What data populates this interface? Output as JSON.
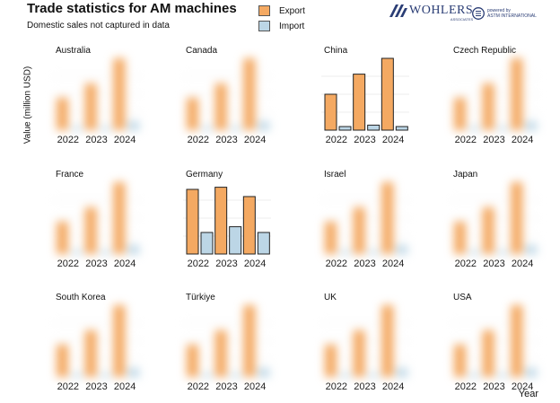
{
  "header": {
    "title": "Trade statistics for AM machines",
    "subtitle": "Domestic sales not captured in data"
  },
  "legend": [
    {
      "label": "Export",
      "color": "#f4a962"
    },
    {
      "label": "Import",
      "color": "#bcd6e6"
    }
  ],
  "logos": {
    "wohlers": "WOHLERS",
    "wohlers_sub": "ASSOCIATES",
    "astm_line1": "powered by",
    "astm_line2": "ASTM INTERNATIONAL"
  },
  "axes": {
    "ylabel": "Value (million USD)",
    "xlabel": "Year"
  },
  "colors": {
    "export": "#f4a962",
    "import": "#bcd6e6",
    "outline": "#222222"
  },
  "chart_data": {
    "type": "bar",
    "categories": [
      "2022",
      "2023",
      "2024"
    ],
    "series_names": [
      "Export",
      "Import"
    ],
    "panels": [
      {
        "name": "Australia",
        "blurred": true,
        "export": [
          0.45,
          0.65,
          1.0
        ],
        "import": [
          0.05,
          0.05,
          0.12
        ]
      },
      {
        "name": "Canada",
        "blurred": true,
        "export": [
          0.45,
          0.65,
          1.0
        ],
        "import": [
          0.05,
          0.05,
          0.12
        ]
      },
      {
        "name": "China",
        "blurred": false,
        "export": [
          0.5,
          0.78,
          1.0
        ],
        "import": [
          0.05,
          0.07,
          0.05
        ]
      },
      {
        "name": "Czech Republic",
        "blurred": true,
        "export": [
          0.45,
          0.65,
          1.0
        ],
        "import": [
          0.05,
          0.05,
          0.12
        ]
      },
      {
        "name": "France",
        "blurred": true,
        "export": [
          0.45,
          0.65,
          1.0
        ],
        "import": [
          0.05,
          0.05,
          0.12
        ]
      },
      {
        "name": "Germany",
        "blurred": false,
        "export": [
          0.9,
          0.93,
          0.8
        ],
        "import": [
          0.3,
          0.38,
          0.3
        ]
      },
      {
        "name": "Israel",
        "blurred": true,
        "export": [
          0.45,
          0.65,
          1.0
        ],
        "import": [
          0.05,
          0.05,
          0.12
        ]
      },
      {
        "name": "Japan",
        "blurred": true,
        "export": [
          0.45,
          0.65,
          1.0
        ],
        "import": [
          0.05,
          0.05,
          0.12
        ]
      },
      {
        "name": "South Korea",
        "blurred": true,
        "export": [
          0.45,
          0.65,
          1.0
        ],
        "import": [
          0.05,
          0.05,
          0.12
        ]
      },
      {
        "name": "Türkiye",
        "blurred": true,
        "export": [
          0.45,
          0.65,
          1.0
        ],
        "import": [
          0.05,
          0.05,
          0.12
        ]
      },
      {
        "name": "UK",
        "blurred": true,
        "export": [
          0.45,
          0.65,
          1.0
        ],
        "import": [
          0.05,
          0.05,
          0.12
        ]
      },
      {
        "name": "USA",
        "blurred": true,
        "export": [
          0.45,
          0.65,
          1.0
        ],
        "import": [
          0.05,
          0.05,
          0.12
        ]
      }
    ]
  }
}
